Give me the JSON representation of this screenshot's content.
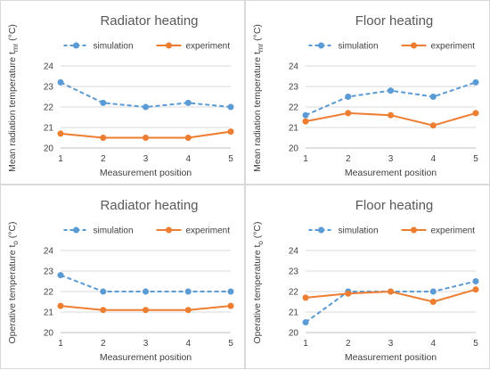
{
  "chart_data": [
    {
      "type": "line",
      "title": "Radiator heating",
      "xlabel": "Measurement position",
      "ylabel": "Mean radiation temperature t",
      "ylabel_sub": "mr",
      "ylabel_unit": "(°C)",
      "x": [
        1,
        2,
        3,
        4,
        5
      ],
      "ylim": [
        20,
        24
      ],
      "yticks": [
        20,
        21,
        22,
        23,
        24
      ],
      "grid": true,
      "legend": "top",
      "series": [
        {
          "name": "simulation",
          "values": [
            23.2,
            22.2,
            22.0,
            22.2,
            22.0
          ],
          "color": "#5b9bd5",
          "dash": true
        },
        {
          "name": "experiment",
          "values": [
            20.7,
            20.5,
            20.5,
            20.5,
            20.8
          ],
          "color": "#ed7d31",
          "dash": false
        }
      ]
    },
    {
      "type": "line",
      "title": "Floor heating",
      "xlabel": "Measurement position",
      "ylabel": "Mean radiation temperature t",
      "ylabel_sub": "mr",
      "ylabel_unit": "(°C)",
      "x": [
        1,
        2,
        3,
        4,
        5
      ],
      "ylim": [
        20,
        24
      ],
      "yticks": [
        20,
        21,
        22,
        23,
        24
      ],
      "grid": true,
      "legend": "top",
      "series": [
        {
          "name": "simulation",
          "values": [
            21.6,
            22.5,
            22.8,
            22.5,
            23.2
          ],
          "color": "#5b9bd5",
          "dash": true
        },
        {
          "name": "experiment",
          "values": [
            21.3,
            21.7,
            21.6,
            21.1,
            21.7
          ],
          "color": "#ed7d31",
          "dash": false
        }
      ]
    },
    {
      "type": "line",
      "title": "Radiator heating",
      "xlabel": "Measurement position",
      "ylabel": "Operative temperature t",
      "ylabel_sub": "o",
      "ylabel_unit": "(°C)",
      "x": [
        1,
        2,
        3,
        4,
        5
      ],
      "ylim": [
        20,
        24
      ],
      "yticks": [
        20,
        21,
        22,
        23,
        24
      ],
      "grid": true,
      "legend": "top",
      "series": [
        {
          "name": "simulation",
          "values": [
            22.8,
            22.0,
            22.0,
            22.0,
            22.0
          ],
          "color": "#5b9bd5",
          "dash": true
        },
        {
          "name": "experiment",
          "values": [
            21.3,
            21.1,
            21.1,
            21.1,
            21.3
          ],
          "color": "#ed7d31",
          "dash": false
        }
      ]
    },
    {
      "type": "line",
      "title": "Floor heating",
      "xlabel": "Measurement position",
      "ylabel": "Operative temperature t",
      "ylabel_sub": "o",
      "ylabel_unit": "(°C)",
      "x": [
        1,
        2,
        3,
        4,
        5
      ],
      "ylim": [
        20,
        24
      ],
      "yticks": [
        20,
        21,
        22,
        23,
        24
      ],
      "grid": true,
      "legend": "top",
      "series": [
        {
          "name": "simulation",
          "values": [
            20.5,
            22.0,
            22.0,
            22.0,
            22.5
          ],
          "color": "#5b9bd5",
          "dash": true
        },
        {
          "name": "experiment",
          "values": [
            21.7,
            21.9,
            22.0,
            21.5,
            22.1
          ],
          "color": "#ed7d31",
          "dash": false
        }
      ]
    }
  ]
}
